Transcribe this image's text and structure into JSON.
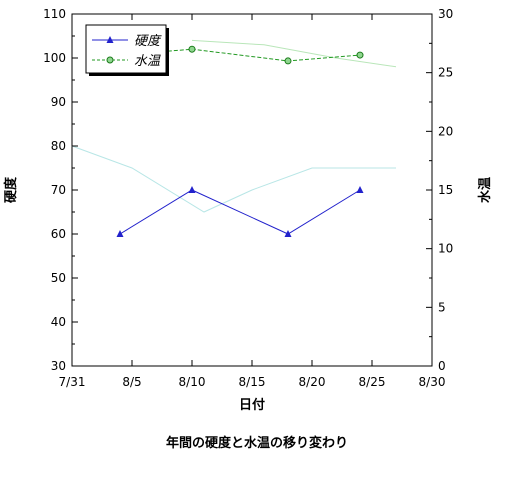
{
  "chart_data": {
    "type": "line",
    "caption": "年間の硬度と水温の移り変わり",
    "xlabel": "日付",
    "ylabel_left": "硬度",
    "ylabel_right": "水温",
    "x_domain_days": [
      0,
      30
    ],
    "x_ticks": [
      {
        "day": 0,
        "label": "7/31"
      },
      {
        "day": 5,
        "label": "8/5"
      },
      {
        "day": 10,
        "label": "8/10"
      },
      {
        "day": 15,
        "label": "8/15"
      },
      {
        "day": 20,
        "label": "8/20"
      },
      {
        "day": 25,
        "label": "8/25"
      },
      {
        "day": 30,
        "label": "8/30"
      }
    ],
    "ylim_left": [
      30,
      110
    ],
    "yticks_left": [
      30,
      40,
      50,
      60,
      70,
      80,
      90,
      100,
      110
    ],
    "ylim_right": [
      0,
      30
    ],
    "yticks_right": [
      0,
      5,
      10,
      15,
      20,
      25,
      30
    ],
    "grid": false,
    "legend": "top-left",
    "series": [
      {
        "name": "硬度",
        "axis": "left",
        "color": "#2222cc",
        "marker": "triangle",
        "points": [
          {
            "day": 4,
            "y": 60
          },
          {
            "day": 10,
            "y": 70
          },
          {
            "day": 18,
            "y": 60
          },
          {
            "day": 24,
            "y": 70
          }
        ]
      },
      {
        "name": "水温",
        "axis": "right",
        "color": "#229922",
        "marker": "circle",
        "dash": true,
        "points": [
          {
            "day": 4,
            "y": 26.5
          },
          {
            "day": 10,
            "y": 27
          },
          {
            "day": 18,
            "y": 26
          },
          {
            "day": 24,
            "y": 26.5
          }
        ]
      }
    ],
    "background_lines": [
      {
        "color": "#b8e6e6",
        "axis": "left",
        "points": [
          {
            "day": 0,
            "y": 80
          },
          {
            "day": 5,
            "y": 75
          },
          {
            "day": 11,
            "y": 65
          },
          {
            "day": 15,
            "y": 70
          },
          {
            "day": 20,
            "y": 75
          },
          {
            "day": 27,
            "y": 75
          }
        ]
      },
      {
        "color": "#b9e6b9",
        "axis": "left",
        "points": [
          {
            "day": 10,
            "y": 104
          },
          {
            "day": 16,
            "y": 103
          },
          {
            "day": 22,
            "y": 100
          },
          {
            "day": 27,
            "y": 98
          }
        ]
      }
    ]
  }
}
